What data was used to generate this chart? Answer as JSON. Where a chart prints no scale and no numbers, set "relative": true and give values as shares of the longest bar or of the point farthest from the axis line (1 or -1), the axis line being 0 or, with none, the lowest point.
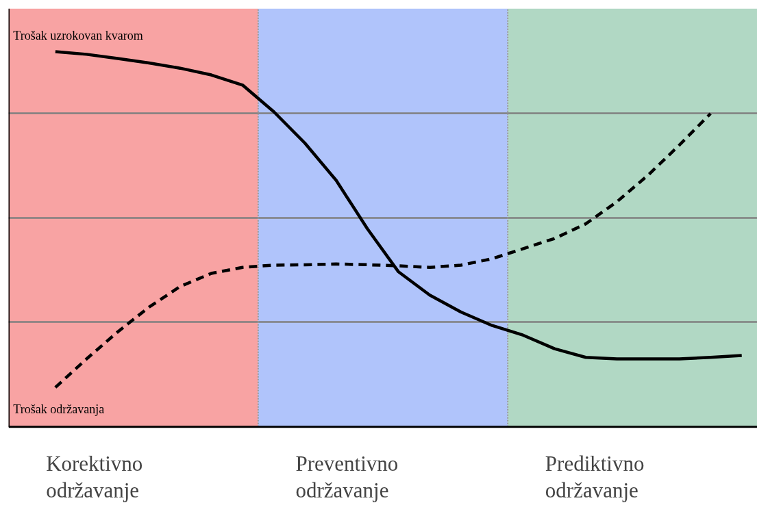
{
  "chart_data": {
    "type": "line",
    "relative": true,
    "grid": "y",
    "categories": [
      null,
      null,
      null,
      null,
      null,
      null,
      null,
      null,
      null,
      null,
      null,
      null,
      null,
      null,
      null,
      null,
      null,
      null,
      null,
      null,
      null,
      null,
      null,
      null
    ],
    "series": [
      {
        "name": "Trošak uzrokovan kvarom",
        "color": "#000000",
        "line_style": "solid",
        "values": [
          null,
          1.0,
          0.993,
          0.982,
          0.97,
          0.956,
          0.938,
          0.911,
          0.84,
          0.756,
          0.657,
          0.528,
          0.413,
          0.351,
          0.306,
          0.27,
          0.244,
          0.208,
          0.185,
          0.181,
          0.181,
          0.181,
          0.185,
          0.19
        ]
      },
      {
        "name": "Trošak održavanja",
        "color": "#000000",
        "line_style": "dashed",
        "values": [
          null,
          0.105,
          0.181,
          0.253,
          0.319,
          0.374,
          0.409,
          0.425,
          0.431,
          0.432,
          0.434,
          0.432,
          0.429,
          0.425,
          0.431,
          0.448,
          0.475,
          0.502,
          0.541,
          0.6,
          0.671,
          0.751,
          0.835,
          null
        ]
      }
    ],
    "annotations": [
      "Korektivno održavanje",
      "Preventivno održavanje",
      "Prediktivno održavanje"
    ]
  }
}
